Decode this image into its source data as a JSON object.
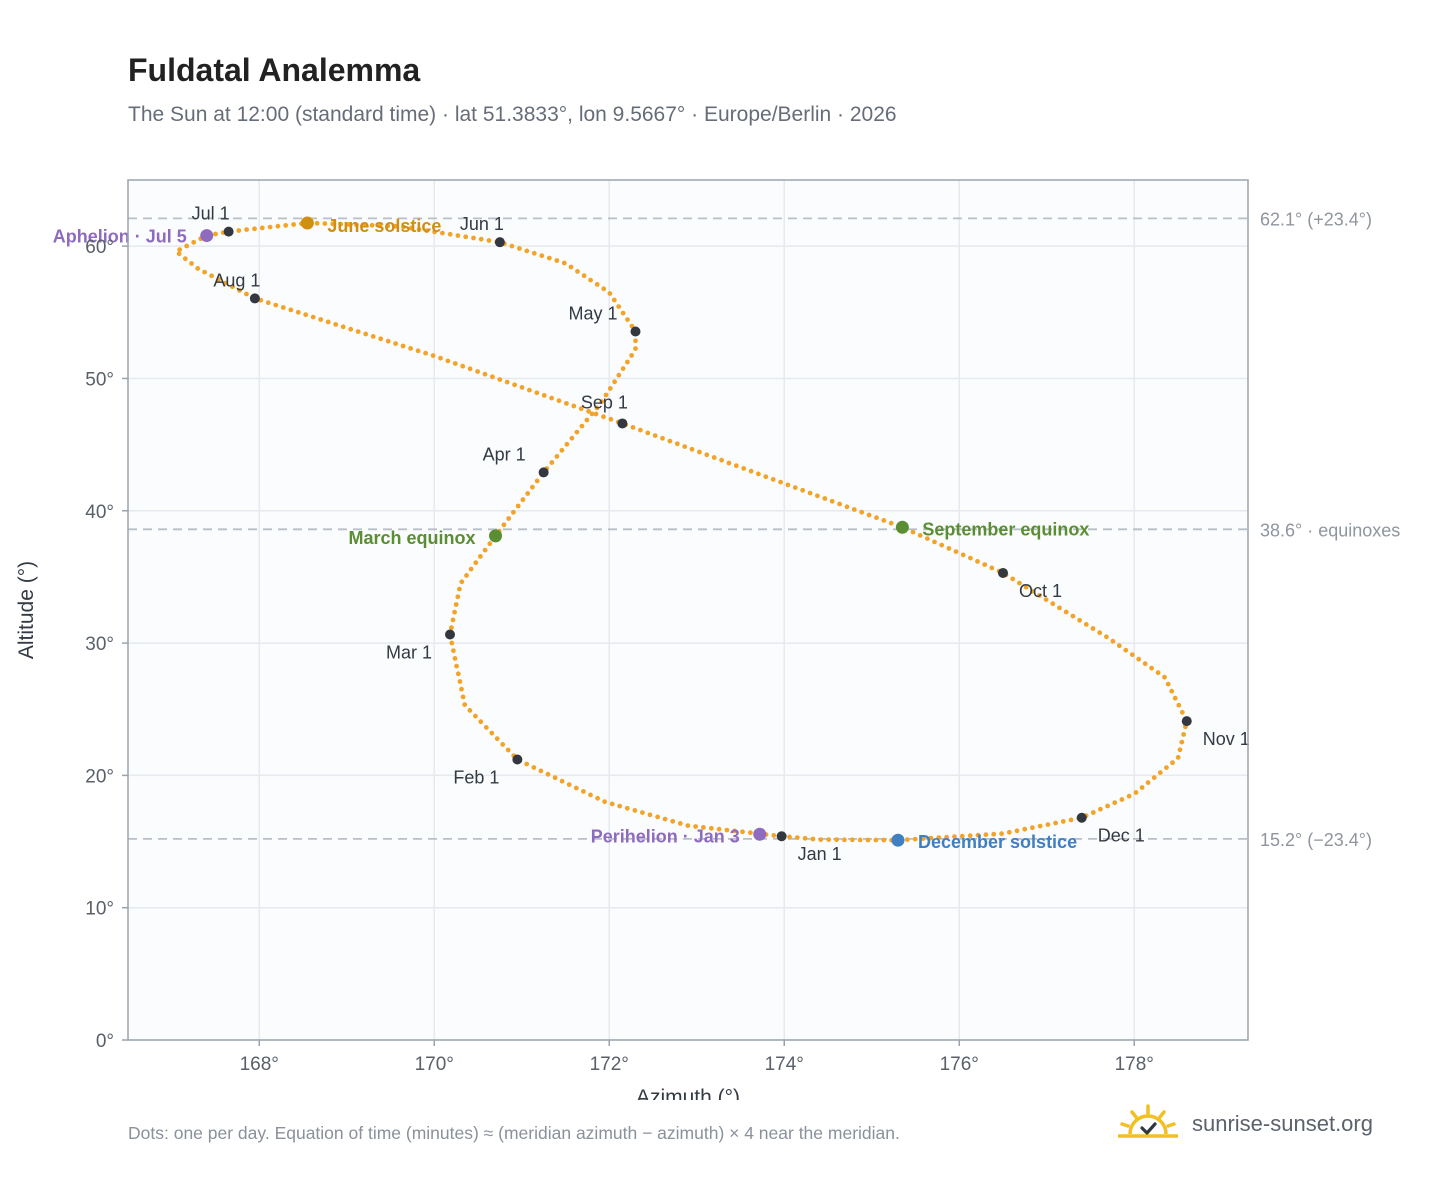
{
  "header": {
    "title": "Fuldatal Analemma",
    "subtitle": "The Sun at 12:00 (standard time) · lat 51.3833°, lon 9.5667° · Europe/Berlin · 2026"
  },
  "footer": {
    "note": "Dots: one per day. Equation of time (minutes) ≈ (meridian azimuth − azimuth) × 4 near the meridian.",
    "brand": "sunrise-sunset.org"
  },
  "icons": {
    "brand_logo": "sunrise-check-icon"
  },
  "chart_data": {
    "type": "scatter",
    "xlabel": "Azimuth (°)",
    "ylabel": "Altitude (°)",
    "xlim": [
      166.5,
      179.3
    ],
    "ylim": [
      0,
      65
    ],
    "grid": true,
    "xticks": [
      168,
      170,
      172,
      174,
      176,
      178
    ],
    "xtick_labels": [
      "168°",
      "170°",
      "172°",
      "174°",
      "176°",
      "178°"
    ],
    "yticks": [
      0,
      10,
      20,
      30,
      40,
      50,
      60
    ],
    "ytick_labels": [
      "0°",
      "10°",
      "20°",
      "30°",
      "40°",
      "50°",
      "60°"
    ],
    "colors": {
      "path": "#f2a429",
      "month_marker": "#333840",
      "aphelion": "#8e6bbf",
      "perihelion": "#8e6bbf",
      "june_solstice": "#d08f10",
      "december_solstice": "#3f7fc2",
      "equinox": "#5b8e33",
      "reference_line": "#b9bfc6",
      "plot_background": "#fafcfe",
      "grid": "#e6e9ed",
      "frame": "#9aa3ad"
    },
    "reference_lines": [
      {
        "y": 62.1,
        "label": "62.1° (+23.4°)"
      },
      {
        "y": 38.6,
        "label": "38.6° · equinoxes"
      },
      {
        "y": 15.2,
        "label": "15.2° (−23.4°)"
      }
    ],
    "path_points": [
      [
        173.97,
        15.4
      ],
      [
        172.9,
        16.2
      ],
      [
        171.95,
        18.0
      ],
      [
        170.95,
        21.2
      ],
      [
        170.35,
        25.3
      ],
      [
        170.18,
        30.65
      ],
      [
        170.3,
        34.5
      ],
      [
        170.7,
        38.1
      ],
      [
        171.25,
        42.9
      ],
      [
        171.9,
        48.1
      ],
      [
        172.3,
        52.2
      ],
      [
        172.3,
        53.55
      ],
      [
        172.0,
        56.5
      ],
      [
        171.5,
        58.7
      ],
      [
        170.75,
        60.3
      ],
      [
        169.6,
        61.5
      ],
      [
        168.55,
        61.75
      ],
      [
        167.65,
        61.1
      ],
      [
        167.4,
        60.8
      ],
      [
        167.05,
        59.6
      ],
      [
        167.3,
        58.3
      ],
      [
        167.95,
        56.05
      ],
      [
        170.0,
        51.7
      ],
      [
        172.15,
        46.6
      ],
      [
        175.35,
        38.75
      ],
      [
        176.5,
        35.3
      ],
      [
        177.7,
        30.4
      ],
      [
        178.35,
        27.4
      ],
      [
        178.6,
        24.1
      ],
      [
        178.5,
        21.3
      ],
      [
        178.0,
        18.6
      ],
      [
        177.4,
        16.8
      ],
      [
        176.5,
        15.6
      ],
      [
        175.3,
        15.1
      ],
      [
        174.4,
        15.15
      ],
      [
        173.97,
        15.4
      ]
    ],
    "month_markers": [
      {
        "label": "Jan 1",
        "x": 173.97,
        "y": 15.4
      },
      {
        "label": "Feb 1",
        "x": 170.95,
        "y": 21.2
      },
      {
        "label": "Mar 1",
        "x": 170.18,
        "y": 30.65
      },
      {
        "label": "Apr 1",
        "x": 171.25,
        "y": 42.9
      },
      {
        "label": "May 1",
        "x": 172.3,
        "y": 53.55
      },
      {
        "label": "Jun 1",
        "x": 170.75,
        "y": 60.3
      },
      {
        "label": "Jul 1",
        "x": 167.65,
        "y": 61.1
      },
      {
        "label": "Aug 1",
        "x": 167.95,
        "y": 56.05
      },
      {
        "label": "Sep 1",
        "x": 172.15,
        "y": 46.6
      },
      {
        "label": "Oct 1",
        "x": 176.5,
        "y": 35.3
      },
      {
        "label": "Nov 1",
        "x": 178.6,
        "y": 24.1
      },
      {
        "label": "Dec 1",
        "x": 177.4,
        "y": 16.8
      }
    ],
    "events": [
      {
        "label": "Aphelion · Jul 5",
        "x": 167.4,
        "y": 60.8,
        "color": "#8e6bbf"
      },
      {
        "label": "June solstice",
        "x": 168.55,
        "y": 61.75,
        "color": "#d08f10"
      },
      {
        "label": "March equinox",
        "x": 170.7,
        "y": 38.1,
        "color": "#5b8e33"
      },
      {
        "label": "September equinox",
        "x": 175.35,
        "y": 38.75,
        "color": "#5b8e33"
      },
      {
        "label": "Perihelion · Jan 3",
        "x": 173.72,
        "y": 15.55,
        "color": "#8e6bbf"
      },
      {
        "label": "December solstice",
        "x": 175.3,
        "y": 15.1,
        "color": "#3f7fc2"
      }
    ]
  }
}
